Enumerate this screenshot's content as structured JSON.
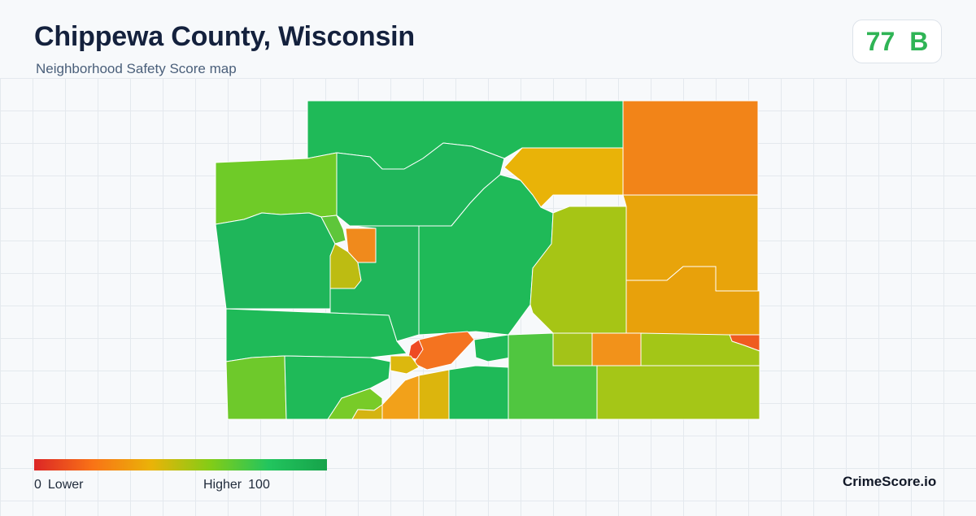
{
  "header": {
    "title": "Chippewa County, Wisconsin",
    "subtitle": "Neighborhood Safety Score map"
  },
  "score": {
    "value": "77",
    "grade": "B",
    "color": "#2fb455"
  },
  "legend": {
    "min_value": "0",
    "min_label": "Lower",
    "max_label": "Higher",
    "max_value": "100",
    "gradient_colors": [
      "#dc2626",
      "#f97316",
      "#eab308",
      "#84cc16",
      "#22c55e",
      "#16a34a"
    ]
  },
  "brand": "CrimeScore.io",
  "map": {
    "regions": [
      {
        "name": "northern-block",
        "color": "#1fba58"
      },
      {
        "name": "northeast-corner",
        "color": "#f28418"
      },
      {
        "name": "north-central-yellow",
        "color": "#e9b308"
      },
      {
        "name": "west-lime",
        "color": "#6fcb28"
      },
      {
        "name": "north-central-green",
        "color": "#1fb65a"
      },
      {
        "name": "west-central-green",
        "color": "#1fb65a"
      },
      {
        "name": "narrow-strip",
        "color": "#5ec63a"
      },
      {
        "name": "orange-square",
        "color": "#f08a1c"
      },
      {
        "name": "olive-patch",
        "color": "#bdbc12"
      },
      {
        "name": "central-green",
        "color": "#1fb65a"
      },
      {
        "name": "center-east-green",
        "color": "#1fba58"
      },
      {
        "name": "east-olive",
        "color": "#a6c515"
      },
      {
        "name": "east-amber",
        "color": "#e8a40b"
      },
      {
        "name": "southeast-amber",
        "color": "#e8a10b"
      },
      {
        "name": "far-east-red",
        "color": "#ef5b20"
      },
      {
        "name": "southwest-green",
        "color": "#1fba58"
      },
      {
        "name": "southwest-lime",
        "color": "#6ec92b"
      },
      {
        "name": "south-green",
        "color": "#1fba58"
      },
      {
        "name": "city-orange",
        "color": "#f47320"
      },
      {
        "name": "city-red",
        "color": "#ee4a24"
      },
      {
        "name": "city-yellow",
        "color": "#dcb80e"
      },
      {
        "name": "south-orange",
        "color": "#f2a11a"
      },
      {
        "name": "south-gold",
        "color": "#dcb50d"
      },
      {
        "name": "south-central-green",
        "color": "#1fba58"
      },
      {
        "name": "lake-green",
        "color": "#1fba58"
      },
      {
        "name": "southeast-green",
        "color": "#50c640"
      },
      {
        "name": "southeast-olive",
        "color": "#a5c617"
      },
      {
        "name": "mid-olive",
        "color": "#a3c318"
      },
      {
        "name": "mid-orange",
        "color": "#f2921a"
      },
      {
        "name": "east-olive-south",
        "color": "#a3c617"
      },
      {
        "name": "sw-small-lime",
        "color": "#78cb28"
      },
      {
        "name": "sw-small-yellow",
        "color": "#d4b411"
      }
    ]
  }
}
